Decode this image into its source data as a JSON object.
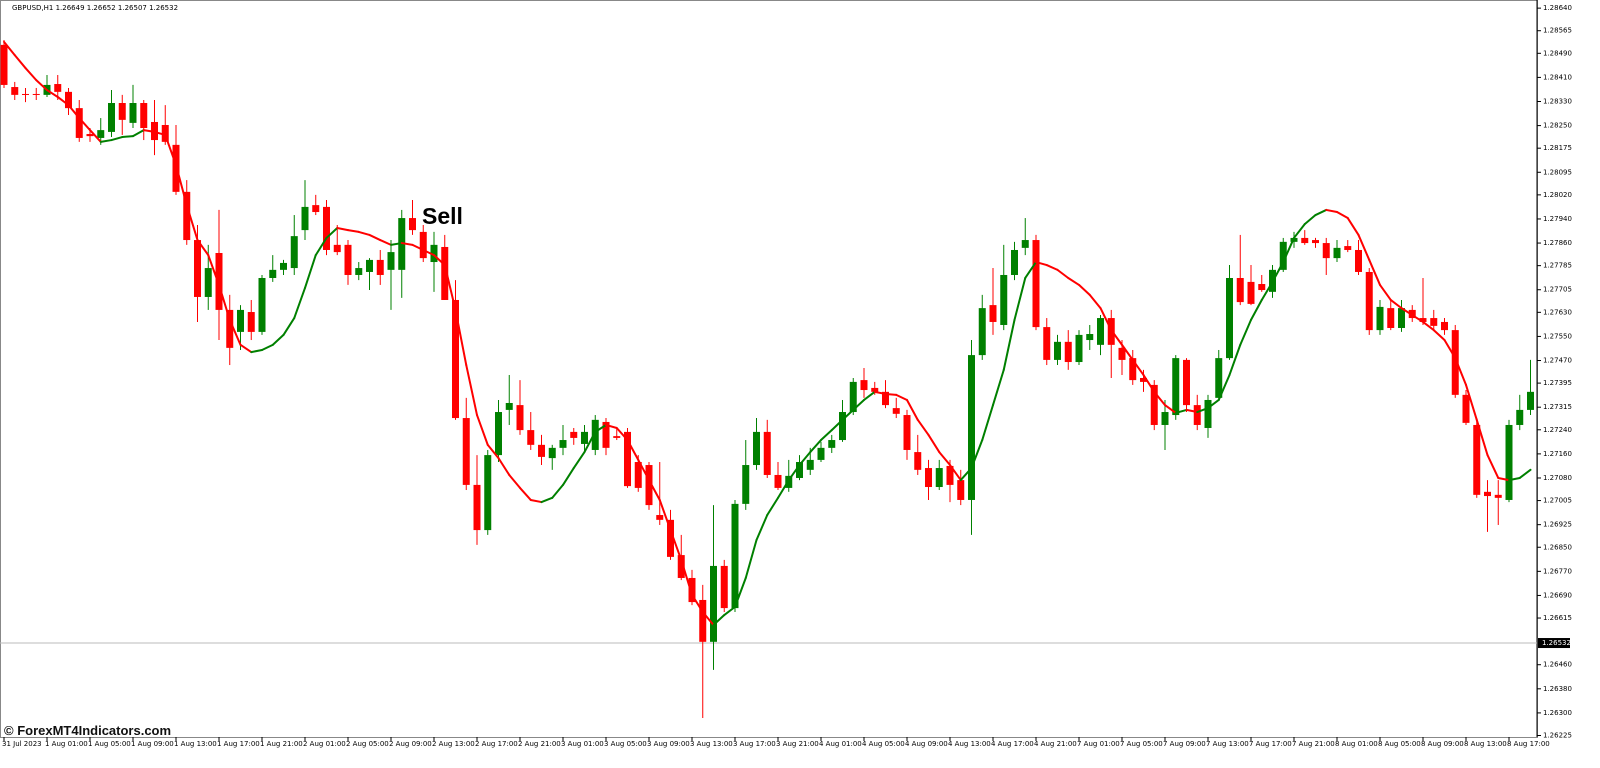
{
  "chart_data": {
    "type": "candlestick",
    "header": "GBPUSD,H1  1.26649 1.26652 1.26507 1.26532",
    "annotation": "Sell",
    "watermark": "© ForexMT4Indicators.com",
    "up_color": "#008000",
    "down_color": "#ff0000",
    "bid": 1.26532,
    "ylim": [
      1.2622,
      1.28667
    ],
    "yticks": [
      {
        "value": 1.2864,
        "label": "1.28640"
      },
      1.28565,
      {
        "value": 1.2849,
        "label": "1.28490"
      },
      {
        "value": 1.2841,
        "label": "1.28410"
      },
      {
        "value": 1.2833,
        "label": "1.28330"
      },
      {
        "value": 1.2825,
        "label": "1.28250"
      },
      1.28175,
      1.28095,
      {
        "value": 1.2802,
        "label": "1.28020"
      },
      {
        "value": 1.2794,
        "label": "1.27940"
      },
      {
        "value": 1.2786,
        "label": "1.27860"
      },
      1.27785,
      1.27705,
      {
        "value": 1.2763,
        "label": "1.27630"
      },
      {
        "value": 1.2755,
        "label": "1.27550"
      },
      {
        "value": 1.2747,
        "label": "1.27470"
      },
      1.27395,
      1.27315,
      {
        "value": 1.2724,
        "label": "1.27240"
      },
      {
        "value": 1.2716,
        "label": "1.27160"
      },
      {
        "value": 1.2708,
        "label": "1.27080"
      },
      1.27005,
      1.26925,
      {
        "value": 1.2685,
        "label": "1.26850"
      },
      {
        "value": 1.2677,
        "label": "1.26770"
      },
      {
        "value": 1.2669,
        "label": "1.26690"
      },
      1.26615,
      {
        "value": 1.2646,
        "label": "1.26460"
      },
      {
        "value": 1.2638,
        "label": "1.26380"
      },
      {
        "value": 1.263,
        "label": "1.26300"
      },
      1.26225
    ],
    "categories": [
      "31 Jul 2023",
      null,
      null,
      null,
      "1 Aug 01:00",
      null,
      null,
      null,
      "1 Aug 05:00",
      null,
      null,
      null,
      "1 Aug 09:00",
      null,
      null,
      null,
      "1 Aug 13:00",
      null,
      null,
      null,
      "1 Aug 17:00",
      null,
      null,
      null,
      "1 Aug 21:00",
      null,
      null,
      null,
      "2 Aug 01:00",
      null,
      null,
      null,
      "2 Aug 05:00",
      null,
      null,
      null,
      "2 Aug 09:00",
      null,
      null,
      null,
      "2 Aug 13:00",
      null,
      null,
      null,
      "2 Aug 17:00",
      null,
      null,
      null,
      "2 Aug 21:00",
      null,
      null,
      null,
      "3 Aug 01:00",
      null,
      null,
      null,
      "3 Aug 05:00",
      null,
      null,
      null,
      "3 Aug 09:00",
      null,
      null,
      null,
      "3 Aug 13:00",
      null,
      null,
      null,
      "3 Aug 17:00",
      null,
      null,
      null,
      "3 Aug 21:00",
      null,
      null,
      null,
      "4 Aug 01:00",
      null,
      null,
      null,
      "4 Aug 05:00",
      null,
      null,
      null,
      "4 Aug 09:00",
      null,
      null,
      null,
      "4 Aug 13:00",
      null,
      null,
      null,
      "4 Aug 17:00",
      null,
      null,
      null,
      "4 Aug 21:00",
      null,
      null,
      null,
      "7 Aug 01:00",
      null,
      null,
      null,
      "7 Aug 05:00",
      null,
      null,
      null,
      "7 Aug 09:00",
      null,
      null,
      null,
      "7 Aug 13:00",
      null,
      null,
      null,
      "7 Aug 17:00",
      null,
      null,
      null,
      "7 Aug 21:00",
      null,
      null,
      null,
      "8 Aug 01:00",
      null,
      null,
      null,
      "8 Aug 05:00",
      null,
      null,
      null,
      "8 Aug 09:00",
      null,
      null,
      null,
      "8 Aug 13:00",
      null,
      null,
      null,
      "8 Aug 17:00",
      null,
      null
    ],
    "open": [
      1.28518,
      1.28378,
      1.28355,
      1.28355,
      1.28352,
      1.28388,
      1.28362,
      1.28308,
      1.28222,
      1.28209,
      1.28229,
      1.28325,
      1.28259,
      1.28325,
      1.28262,
      1.28252,
      1.28186,
      1.2803,
      1.2787,
      1.27681,
      1.27827,
      1.27638,
      1.27565,
      1.27631,
      1.27565,
      1.27744,
      1.27771,
      1.27777,
      1.27903,
      1.27986,
      1.2798,
      1.27854,
      1.27854,
      1.27754,
      1.27764,
      1.27804,
      1.27771,
      1.27771,
      1.27943,
      1.27897,
      1.27797,
      1.27847,
      1.27671,
      1.27279,
      1.27057,
      1.26907,
      1.27156,
      1.27306,
      1.27322,
      1.27239,
      1.2719,
      1.27146,
      1.2718,
      1.27233,
      1.27193,
      1.27173,
      1.27266,
      1.27219,
      1.27233,
      1.27133,
      1.27123,
      1.26957,
      1.26941,
      1.26824,
      1.26748,
      1.26675,
      1.26536,
      1.26788,
      1.26648,
      1.26994,
      1.27123,
      1.27233,
      1.2709,
      1.27047,
      1.2708,
      1.27107,
      1.2714,
      1.2718,
      1.27206,
      1.27299,
      1.27405,
      1.27379,
      1.27366,
      1.27312,
      1.27289,
      1.27166,
      1.27113,
      1.2705,
      1.2712,
      1.27073,
      1.27007,
      1.27488,
      1.27654,
      1.27588,
      1.27754,
      1.27844,
      1.2787,
      1.27581,
      1.27472,
      1.27532,
      1.27465,
      1.27538,
      1.27522,
      1.27611,
      1.27512,
      1.27478,
      1.27412,
      1.27389,
      1.27256,
      1.27289,
      1.27472,
      1.27322,
      1.27246,
      1.27346,
      1.27478,
      1.27744,
      1.27731,
      1.27724,
      1.27698,
      1.27771,
      1.27864,
      1.27877,
      1.2787,
      1.2786,
      1.2781,
      1.2785,
      1.27837,
      1.27764,
      1.27571,
      1.27644,
      1.27578,
      1.27638,
      1.27611,
      1.27611,
      1.27598,
      1.27571,
      1.27356,
      1.27256,
      1.27034,
      1.27024,
      1.27007,
      1.27256,
      1.27306
    ],
    "high": [
      1.28534,
      1.28395,
      1.28375,
      1.28375,
      1.28418,
      1.28418,
      1.28375,
      1.28335,
      1.28242,
      1.28275,
      1.28368,
      1.28352,
      1.28385,
      1.28335,
      1.28335,
      1.28318,
      1.28252,
      1.28069,
      1.2792,
      1.27854,
      1.2797,
      1.27688,
      1.27654,
      1.27671,
      1.27754,
      1.2782,
      1.27804,
      1.27953,
      1.28069,
      1.2802,
      1.28003,
      1.2792,
      1.2787,
      1.27797,
      1.2781,
      1.27837,
      1.2787,
      1.2797,
      1.28003,
      1.2792,
      1.27897,
      1.27887,
      1.27737,
      1.27346,
      1.27156,
      1.27173,
      1.27339,
      1.27422,
      1.27405,
      1.27299,
      1.27223,
      1.2719,
      1.27256,
      1.27246,
      1.27256,
      1.27289,
      1.27279,
      1.27246,
      1.27246,
      1.27156,
      1.27133,
      1.27133,
      1.26974,
      1.26891,
      1.26775,
      1.26725,
      1.2699,
      1.26808,
      1.27007,
      1.27206,
      1.27279,
      1.27273,
      1.27133,
      1.2714,
      1.27156,
      1.2718,
      1.272,
      1.27223,
      1.27339,
      1.27412,
      1.27445,
      1.27399,
      1.27405,
      1.27346,
      1.27306,
      1.27223,
      1.2714,
      1.2714,
      1.2714,
      1.27107,
      1.27538,
      1.27688,
      1.27777,
      1.27854,
      1.27864,
      1.27943,
      1.27887,
      1.27611,
      1.27555,
      1.27571,
      1.27571,
      1.27588,
      1.27621,
      1.27638,
      1.27538,
      1.27505,
      1.27439,
      1.27405,
      1.27339,
      1.27488,
      1.27478,
      1.27356,
      1.27356,
      1.27505,
      1.27787,
      1.27887,
      1.27787,
      1.27754,
      1.27787,
      1.27877,
      1.27897,
      1.27903,
      1.27877,
      1.27877,
      1.2787,
      1.2787,
      1.2787,
      1.27777,
      1.27671,
      1.27671,
      1.27671,
      1.27654,
      1.27744,
      1.27638,
      1.27611,
      1.27588,
      1.27372,
      1.27279,
      1.27073,
      1.27073,
      1.27273,
      1.27356,
      1.27472
    ],
    "low": [
      1.28375,
      1.28335,
      1.28328,
      1.28335,
      1.28345,
      1.28335,
      1.28285,
      1.28196,
      1.28196,
      1.28186,
      1.28212,
      1.28219,
      1.28242,
      1.28202,
      1.28152,
      1.28186,
      1.2802,
      1.27854,
      1.27598,
      1.27638,
      1.27538,
      1.27455,
      1.27505,
      1.27538,
      1.27555,
      1.27731,
      1.27754,
      1.27754,
      1.2787,
      1.27953,
      1.2782,
      1.2782,
      1.27721,
      1.27737,
      1.27704,
      1.27721,
      1.27638,
      1.27678,
      1.27887,
      1.27797,
      1.27698,
      1.27671,
      1.27273,
      1.2704,
      1.26858,
      1.26891,
      1.27133,
      1.27256,
      1.27223,
      1.27173,
      1.27123,
      1.27107,
      1.27156,
      1.2719,
      1.27166,
      1.27156,
      1.27156,
      1.27206,
      1.27047,
      1.27034,
      1.26974,
      1.26924,
      1.26808,
      1.26741,
      1.26658,
      1.26283,
      1.26443,
      1.26635,
      1.26635,
      1.26974,
      1.27107,
      1.2708,
      1.2704,
      1.27034,
      1.27073,
      1.2709,
      1.27133,
      1.27163,
      1.272,
      1.27289,
      1.27346,
      1.27356,
      1.27312,
      1.27279,
      1.2714,
      1.2709,
      1.27007,
      1.2704,
      1.27,
      1.2699,
      1.26891,
      1.27472,
      1.27555,
      1.27571,
      1.27737,
      1.2782,
      1.27571,
      1.27455,
      1.27455,
      1.27439,
      1.27455,
      1.27505,
      1.27488,
      1.27412,
      1.27422,
      1.27389,
      1.27366,
      1.27239,
      1.27173,
      1.27273,
      1.27299,
      1.27239,
      1.27213,
      1.27339,
      1.27472,
      1.27654,
      1.27654,
      1.27698,
      1.27678,
      1.27764,
      1.27844,
      1.27854,
      1.27844,
      1.27754,
      1.27797,
      1.2783,
      1.27754,
      1.27555,
      1.27555,
      1.27571,
      1.27565,
      1.27598,
      1.27588,
      1.27571,
      1.27555,
      1.27346,
      1.27256,
      1.27014,
      1.26901,
      1.26924,
      1.27,
      1.27239,
      1.27289
    ],
    "close": [
      1.28385,
      1.28352,
      1.28352,
      1.28352,
      1.28385,
      1.28362,
      1.28308,
      1.28209,
      1.28215,
      1.28235,
      1.28325,
      1.28269,
      1.28325,
      1.28242,
      1.28202,
      1.28196,
      1.2803,
      1.2787,
      1.27681,
      1.27777,
      1.27638,
      1.27512,
      1.27638,
      1.27565,
      1.27744,
      1.27771,
      1.27794,
      1.27883,
      1.2798,
      1.27963,
      1.27837,
      1.2783,
      1.27754,
      1.27777,
      1.27804,
      1.27754,
      1.2783,
      1.27943,
      1.27903,
      1.2781,
      1.27854,
      1.27671,
      1.27279,
      1.27057,
      1.26907,
      1.27156,
      1.27299,
      1.27329,
      1.27239,
      1.2719,
      1.2715,
      1.2718,
      1.27206,
      1.27213,
      1.27233,
      1.27273,
      1.2718,
      1.27213,
      1.27053,
      1.27047,
      1.2699,
      1.26941,
      1.26818,
      1.26748,
      1.26668,
      1.26536,
      1.26788,
      1.26648,
      1.26994,
      1.27123,
      1.27233,
      1.2709,
      1.27047,
      1.27087,
      1.27133,
      1.2714,
      1.2718,
      1.27206,
      1.27299,
      1.27399,
      1.27372,
      1.27366,
      1.27322,
      1.27293,
      1.27173,
      1.27107,
      1.2705,
      1.27113,
      1.27057,
      1.27007,
      1.27488,
      1.27644,
      1.27598,
      1.27754,
      1.27837,
      1.2787,
      1.27581,
      1.27472,
      1.27532,
      1.27465,
      1.27555,
      1.27558,
      1.27611,
      1.27522,
      1.27472,
      1.27405,
      1.27399,
      1.27256,
      1.27299,
      1.27478,
      1.27322,
      1.27256,
      1.27339,
      1.27478,
      1.27744,
      1.27664,
      1.27658,
      1.27704,
      1.27771,
      1.27864,
      1.27877,
      1.2786,
      1.2786,
      1.2781,
      1.27844,
      1.27837,
      1.27764,
      1.27571,
      1.27648,
      1.27578,
      1.27644,
      1.27611,
      1.27598,
      1.27585,
      1.27571,
      1.27356,
      1.27263,
      1.27024,
      1.2702,
      1.27014,
      1.27256,
      1.27306,
      1.27366
    ],
    "ma": [
      1.28528,
      1.28484,
      1.28441,
      1.28401,
      1.28368,
      1.28345,
      1.28318,
      1.28275,
      1.28235,
      1.28196,
      1.28202,
      1.28212,
      1.28215,
      1.28235,
      1.28229,
      1.28219,
      1.28119,
      1.27986,
      1.2787,
      1.2782,
      1.27721,
      1.27605,
      1.27522,
      1.27498,
      1.27505,
      1.27522,
      1.27555,
      1.27611,
      1.27711,
      1.2782,
      1.27877,
      1.2791,
      1.27903,
      1.27897,
      1.27887,
      1.2787,
      1.27854,
      1.2786,
      1.27854,
      1.27837,
      1.2782,
      1.27787,
      1.27638,
      1.27455,
      1.27289,
      1.2719,
      1.27146,
      1.2709,
      1.27047,
      1.27007,
      1.27,
      1.27014,
      1.27057,
      1.27113,
      1.27166,
      1.27233,
      1.27256,
      1.27246,
      1.27206,
      1.2714,
      1.27073,
      1.27007,
      1.26907,
      1.26808,
      1.26692,
      1.26635,
      1.26592,
      1.26625,
      1.26652,
      1.26748,
      1.26874,
      1.26957,
      1.27014,
      1.27073,
      1.27123,
      1.27166,
      1.27206,
      1.27239,
      1.27273,
      1.27306,
      1.27339,
      1.27366,
      1.27359,
      1.27356,
      1.27339,
      1.27273,
      1.27223,
      1.27166,
      1.27123,
      1.27073,
      1.27113,
      1.27206,
      1.27322,
      1.27439,
      1.27605,
      1.27744,
      1.27797,
      1.27787,
      1.27771,
      1.27744,
      1.27721,
      1.27688,
      1.27644,
      1.27571,
      1.27522,
      1.27472,
      1.27422,
      1.27366,
      1.27322,
      1.27296,
      1.27306,
      1.27299,
      1.27312,
      1.27339,
      1.27422,
      1.27522,
      1.27605,
      1.27671,
      1.27731,
      1.27797,
      1.27877,
      1.27923,
      1.27953,
      1.2797,
      1.27963,
      1.27943,
      1.27887,
      1.27804,
      1.27721,
      1.27671,
      1.27644,
      1.27621,
      1.27598,
      1.27571,
      1.27538,
      1.27478,
      1.27389,
      1.27273,
      1.27156,
      1.2708,
      1.27073,
      1.2708,
      1.27107
    ]
  }
}
